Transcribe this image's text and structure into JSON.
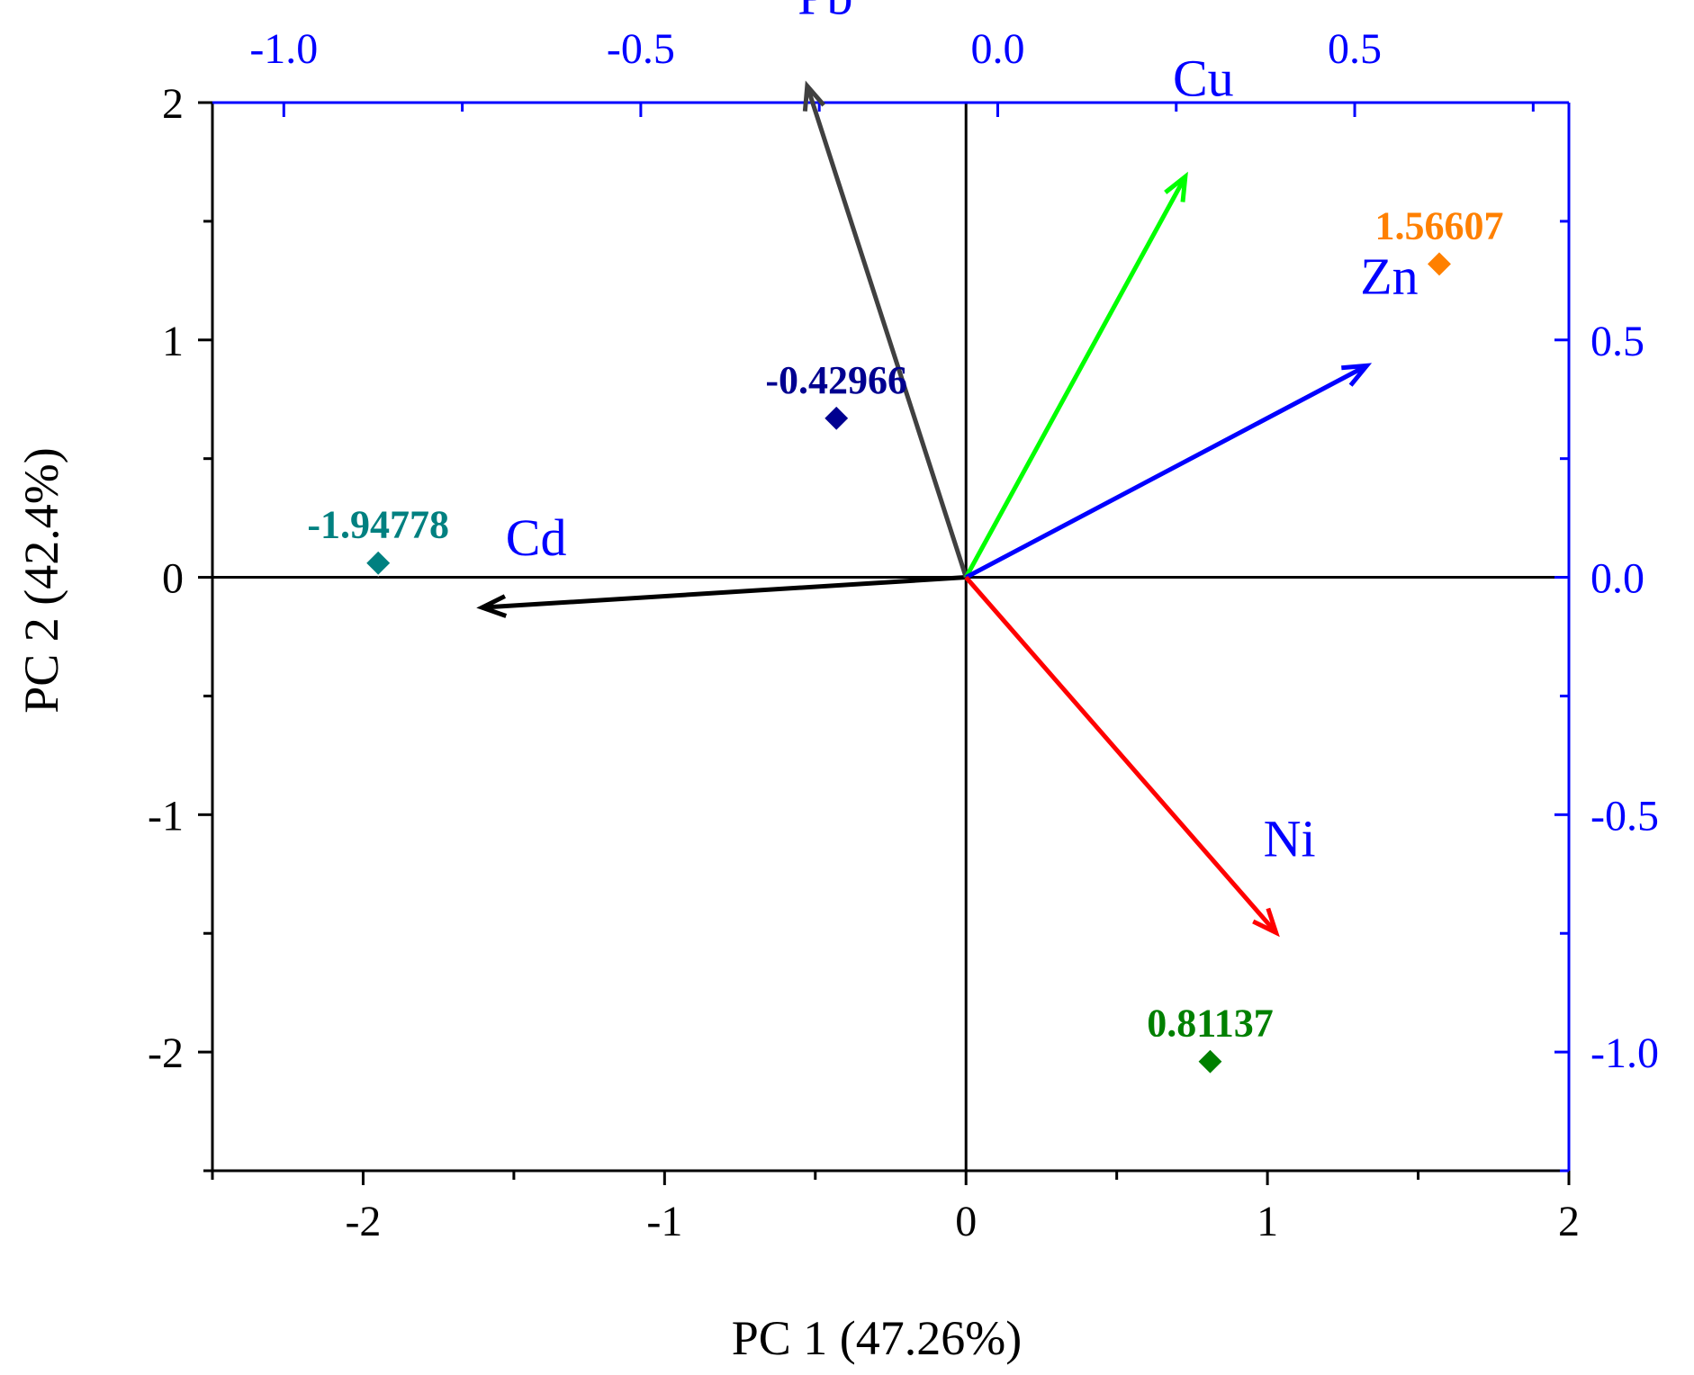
{
  "colors": {
    "frame": "#000000",
    "loading_axes": "#0000ff",
    "variable_label": "#0000ff"
  },
  "chart_data": {
    "type": "scatter",
    "subtype": "pca-biplot",
    "xlabel": "PC 1 (47.26%)",
    "ylabel": "PC 2 (42.4%)",
    "xlim": [
      -2.5,
      2
    ],
    "ylim": [
      -2.5,
      2
    ],
    "x_ticks": [
      -2,
      -1,
      0,
      1,
      2
    ],
    "x_tick_labels": [
      "-2",
      "-1",
      "0",
      "1",
      "2"
    ],
    "y_ticks": [
      -2,
      -1,
      0,
      1,
      2
    ],
    "y_tick_labels": [
      "-2",
      "-1",
      "0",
      "1",
      "2"
    ],
    "top_axis": {
      "lim": [
        -1.1,
        0.8
      ],
      "ticks": [
        -1.0,
        -0.5,
        0.0,
        0.5
      ],
      "tick_labels": [
        "-1.0",
        "-0.5",
        "0.0",
        "0.5"
      ]
    },
    "right_axis": {
      "lim": [
        -1.25,
        1.0
      ],
      "ticks": [
        -1.0,
        -0.5,
        0.0,
        0.5
      ],
      "tick_labels": [
        "-1.0",
        "-0.5",
        "0.0",
        "0.5"
      ]
    },
    "loadings": [
      {
        "name": "Cd",
        "x": -0.64,
        "y": -0.04,
        "color": "#000000"
      },
      {
        "name": "Pb",
        "x": -0.21,
        "y": 0.65,
        "color": "#404040"
      },
      {
        "name": "Cu",
        "x": 0.29,
        "y": 0.53,
        "color": "#00ff00"
      },
      {
        "name": "Zn",
        "x": 0.53,
        "y": 0.28,
        "color": "#0000ff"
      },
      {
        "name": "Ni",
        "x": 0.41,
        "y": -0.47,
        "color": "#ff0000"
      }
    ],
    "scores": [
      {
        "label": "-1.94778",
        "x": -1.95,
        "y": 0.06,
        "color": "#008080"
      },
      {
        "label": "-0.42966",
        "x": -0.43,
        "y": 0.67,
        "color": "#000090"
      },
      {
        "label": "1.56607",
        "x": 1.57,
        "y": 1.32,
        "color": "#ff8000"
      },
      {
        "label": "0.81137",
        "x": 0.81,
        "y": -2.04,
        "color": "#008000"
      }
    ]
  }
}
